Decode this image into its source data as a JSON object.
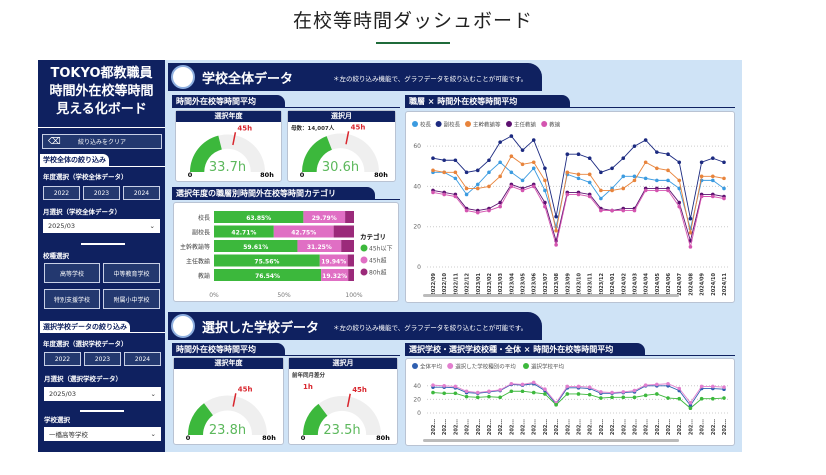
{
  "page_title": "在校等時間ダッシュボード",
  "sidebar": {
    "title_lines": [
      "TOKYO都教職員",
      "時間外在校等時間",
      "見える化ボード"
    ],
    "clear_filter": "絞り込みをクリア",
    "school_all_filter": {
      "heading": "学校全体の絞り込み",
      "year_label": "年度選択（学校全体データ）",
      "years": [
        "2022",
        "2023",
        "2024"
      ],
      "month_label": "月選択（学校全体データ）",
      "month_value": "2025/03",
      "type_label": "校種選択",
      "types": [
        "高等学校",
        "中等教育学校",
        "特別支援学校",
        "附属小中学校"
      ]
    },
    "selected_filter": {
      "heading": "選択学校データの絞り込み",
      "year_label": "年度選択（選択学校データ）",
      "years": [
        "2022",
        "2023",
        "2024"
      ],
      "month_label": "月選択（選択学校データ）",
      "month_value": "2025/03",
      "school_label": "学校選択",
      "school_value": "一橋高等学校"
    }
  },
  "section1": {
    "title": "学校全体データ",
    "note": "＊左の絞り込み機能で、グラフデータを絞り込むことが可能です。",
    "gauge_header": "時間外在校等時間平均",
    "gauges": [
      {
        "title": "選択年度",
        "value": 33.7,
        "value_label": "33.7h",
        "min": "0",
        "max": "80h",
        "max_value": 80,
        "target": 45,
        "target_label": "45h"
      },
      {
        "title": "選択月",
        "value": 30.6,
        "value_label": "30.6h",
        "min": "0",
        "max": "80h",
        "max_value": 80,
        "target": 45,
        "target_label": "45h",
        "extra": "母数：14,007人"
      }
    ],
    "bar_header": "選択年度の職層別時間外在校等時間カテゴリ",
    "line_header": "職層 × 時間外在校等時間平均"
  },
  "section2": {
    "title": "選択した学校データ",
    "note": "＊左の絞り込み機能で、グラフデータを絞り込むことが可能です。",
    "gauge_header": "時間外在校等時間平均",
    "gauges": [
      {
        "title": "選択年度",
        "value": 23.8,
        "value_label": "23.8h",
        "min": "0",
        "max": "80h",
        "max_value": 80,
        "target": 45,
        "target_label": "45h"
      },
      {
        "title": "選択月",
        "value": 23.5,
        "value_label": "23.5h",
        "min": "0",
        "max": "80h",
        "max_value": 80,
        "target": 45,
        "target_label": "45h",
        "extra": "前年同月差分",
        "extra2": "1h"
      }
    ],
    "line_header": "選択学校・選択学校校種・全体 × 時間外在校等時間平均"
  },
  "colors": {
    "navy": "#0f2160",
    "gauge_fill": "#3cb83c",
    "target": "#d9262e"
  },
  "chart_data": [
    {
      "type": "bar",
      "stacked": true,
      "orientation": "horizontal",
      "categories": [
        "校長",
        "副校長",
        "主幹教諭等",
        "主任教諭",
        "教諭"
      ],
      "legend_title": "カテゴリ",
      "legend_position": "right",
      "xticks": [
        "0%",
        "50%",
        "100%"
      ],
      "series": [
        {
          "name": "45h以下",
          "color": "#3cb83c",
          "values": [
            63.85,
            42.71,
            59.61,
            75.56,
            76.54
          ],
          "labels": [
            "63.85%",
            "42.71%",
            "59.61%",
            "75.56%",
            "76.54%"
          ]
        },
        {
          "name": "45h超",
          "color": "#e06fc4",
          "values": [
            29.79,
            42.75,
            31.25,
            19.94,
            19.32
          ],
          "labels": [
            "29.79%",
            "42.75%",
            "31.25%",
            "19.94%",
            "19.32%"
          ]
        },
        {
          "name": "80h超",
          "color": "#9b2a7a",
          "values": [
            6.36,
            14.54,
            9.14,
            4.5,
            4.14
          ]
        }
      ]
    },
    {
      "type": "line",
      "ylim": [
        0,
        70
      ],
      "yticks": [
        0,
        20,
        40,
        60
      ],
      "grid": true,
      "legend_position": "top-left",
      "x": [
        "2022/09",
        "2022/10",
        "2022/11",
        "2022/12",
        "2023/01",
        "2023/02",
        "2023/03",
        "2023/04",
        "2023/05",
        "2023/06",
        "2023/07",
        "2023/08",
        "2023/09",
        "2023/10",
        "2023/11",
        "2023/12",
        "2024/01",
        "2024/02",
        "2024/03",
        "2024/04",
        "2024/05",
        "2024/06",
        "2024/07",
        "2024/08",
        "2024/09",
        "2024/10",
        "2024/11"
      ],
      "series": [
        {
          "name": "校長",
          "color": "#3b9be0",
          "values": [
            47,
            47,
            44,
            36,
            41,
            47,
            52,
            47,
            43,
            49,
            38,
            20,
            46,
            44,
            42,
            34,
            39,
            45,
            45,
            44,
            43,
            43,
            39,
            19,
            43,
            43,
            39
          ]
        },
        {
          "name": "副校長",
          "color": "#1c2a80",
          "values": [
            54,
            53,
            53,
            47,
            48,
            53,
            62,
            65,
            58,
            63,
            49,
            25,
            56,
            56,
            54,
            47,
            49,
            54,
            60,
            63,
            57,
            56,
            52,
            24,
            52,
            54,
            52
          ]
        },
        {
          "name": "主幹教諭等",
          "color": "#e8843c",
          "values": [
            48,
            47,
            47,
            39,
            39,
            40,
            45,
            55,
            51,
            52,
            43,
            18,
            47,
            46,
            46,
            38,
            38,
            39,
            43,
            52,
            49,
            48,
            43,
            17,
            45,
            45,
            44
          ]
        },
        {
          "name": "主任教諭",
          "color": "#5c1070",
          "values": [
            38,
            37,
            36,
            29,
            28,
            29,
            32,
            41,
            39,
            41,
            32,
            13,
            37,
            37,
            36,
            29,
            28,
            29,
            29,
            39,
            39,
            39,
            32,
            13,
            36,
            36,
            35
          ]
        },
        {
          "name": "教諭",
          "color": "#d455b0",
          "values": [
            37,
            36,
            35,
            28,
            27,
            28,
            30,
            40,
            38,
            40,
            30,
            11,
            36,
            36,
            35,
            28,
            28,
            28,
            28,
            38,
            38,
            38,
            30,
            10,
            35,
            35,
            34
          ]
        }
      ]
    },
    {
      "type": "line",
      "ylim": [
        0,
        50
      ],
      "yticks": [
        0,
        20,
        40
      ],
      "grid": true,
      "legend_position": "top-left",
      "xtick_label": "202...",
      "series": [
        {
          "name": "全体平均",
          "color": "#2f5fb0",
          "values": [
            38,
            38,
            37,
            30,
            29,
            31,
            33,
            42,
            41,
            43,
            33,
            13,
            37,
            37,
            36,
            29,
            29,
            30,
            31,
            40,
            40,
            40,
            33,
            11,
            36,
            36,
            35
          ]
        },
        {
          "name": "選択した学校種別の平均",
          "color": "#e27fcf",
          "values": [
            41,
            40,
            39,
            32,
            30,
            32,
            34,
            43,
            42,
            45,
            35,
            15,
            39,
            39,
            38,
            31,
            30,
            31,
            33,
            41,
            42,
            43,
            36,
            15,
            39,
            39,
            38
          ]
        },
        {
          "name": "選択学校平均",
          "color": "#3db83d",
          "values": [
            30,
            29,
            29,
            24,
            23,
            24,
            23,
            32,
            32,
            30,
            28,
            12,
            28,
            28,
            27,
            22,
            23,
            23,
            23,
            26,
            28,
            22,
            21,
            7,
            21,
            21,
            22
          ]
        }
      ]
    }
  ]
}
